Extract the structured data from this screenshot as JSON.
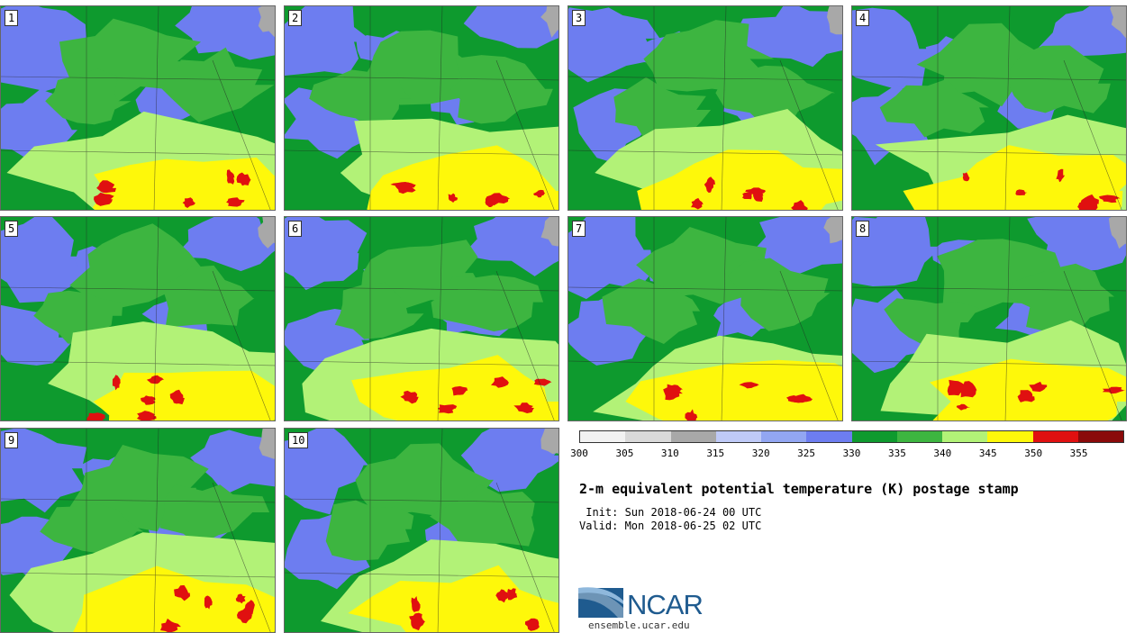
{
  "stamps": [
    {
      "label": "1"
    },
    {
      "label": "2"
    },
    {
      "label": "3"
    },
    {
      "label": "4"
    },
    {
      "label": "5"
    },
    {
      "label": "6"
    },
    {
      "label": "7"
    },
    {
      "label": "8"
    },
    {
      "label": "9"
    },
    {
      "label": "10"
    }
  ],
  "colorbar": {
    "ticks": [
      "300",
      "305",
      "310",
      "315",
      "320",
      "325",
      "330",
      "335",
      "340",
      "345",
      "350",
      "355"
    ],
    "colors": [
      "#f2f2f2",
      "#d9d9d9",
      "#a8a8a8",
      "#bfcaf7",
      "#92a6f2",
      "#6d7df0",
      "#0e9a2e",
      "#3db540",
      "#b2f277",
      "#fef80a",
      "#e01010",
      "#8a0a0a"
    ]
  },
  "title": "2-m equivalent potential temperature (K) postage stamp",
  "init": " Init: Sun 2018-06-24 00 UTC",
  "valid": "Valid: Mon 2018-06-25 02 UTC",
  "logo": {
    "text": "NCAR",
    "site": "ensemble.ucar.edu"
  }
}
